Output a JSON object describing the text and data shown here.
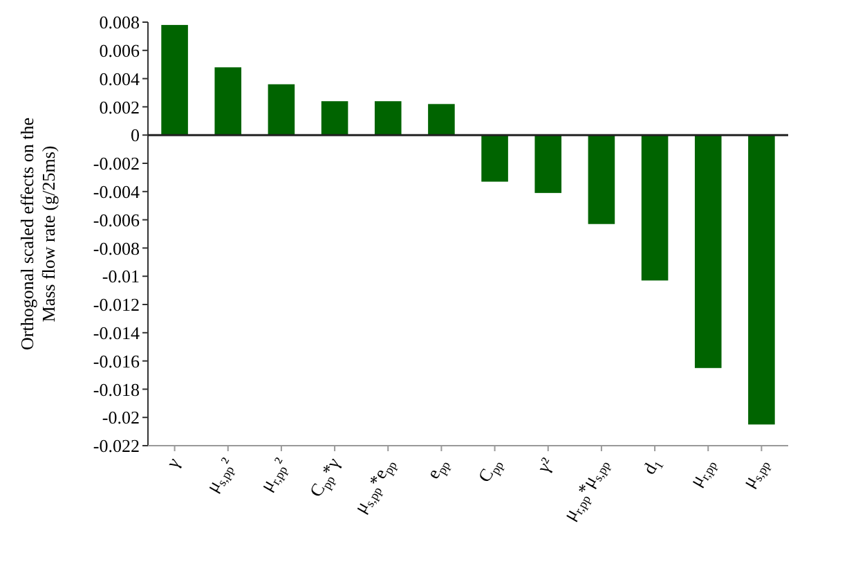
{
  "chart_data": {
    "type": "bar",
    "ylabel": "Orthogonal scaled effects on the\nMass flow rate (g/25ms)",
    "categories": [
      "γ",
      "μ$_{s,pp}$²",
      "μ$_{r,pp}$²",
      "C$_{pp}$*γ",
      "μ$_{s,pp}$*e$_{pp}$",
      "e$_{pp}$",
      "C$_{pp}$",
      "γ²",
      "μ$_{r,pp}$*μ$_{s,pp}$",
      "d$_{1}$",
      "μ$_{r,pp}$",
      "μ$_{s,pp}$"
    ],
    "values": [
      0.0078,
      0.0048,
      0.0036,
      0.0024,
      0.0024,
      0.0022,
      -0.0033,
      -0.0041,
      -0.0063,
      -0.0103,
      -0.0165,
      -0.0205
    ],
    "color": "#006400",
    "ylim": [
      -0.022,
      0.008
    ],
    "yticks": [
      0.008,
      0.006,
      0.004,
      0.002,
      0,
      -0.002,
      -0.004,
      -0.006,
      -0.008,
      -0.01,
      -0.012,
      -0.014,
      -0.016,
      -0.018,
      -0.02,
      -0.022
    ]
  }
}
